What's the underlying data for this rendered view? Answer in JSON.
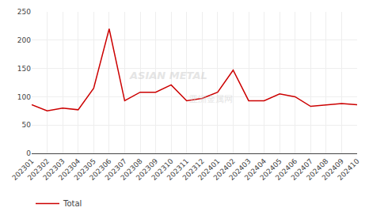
{
  "chart_data": {
    "type": "line",
    "categories": [
      "202301",
      "202302",
      "202303",
      "202304",
      "202305",
      "202306",
      "202307",
      "202308",
      "202309",
      "202310",
      "202311",
      "202312",
      "202401",
      "202402",
      "202403",
      "202404",
      "202405",
      "202406",
      "202407",
      "202408",
      "202409",
      "202410"
    ],
    "series": [
      {
        "name": "Total",
        "color": "#cc0000",
        "values": [
          86,
          75,
          80,
          77,
          115,
          220,
          93,
          108,
          108,
          121,
          93,
          97,
          108,
          147,
          93,
          93,
          105,
          100,
          83,
          85,
          88,
          86
        ]
      }
    ],
    "ylim": [
      0,
      250
    ],
    "yticks": [
      0,
      50,
      100,
      150,
      200,
      250
    ],
    "grid": true,
    "legend": "bottom",
    "annotations": [
      "ASIAN METAL",
      "亚洲金属网"
    ]
  }
}
